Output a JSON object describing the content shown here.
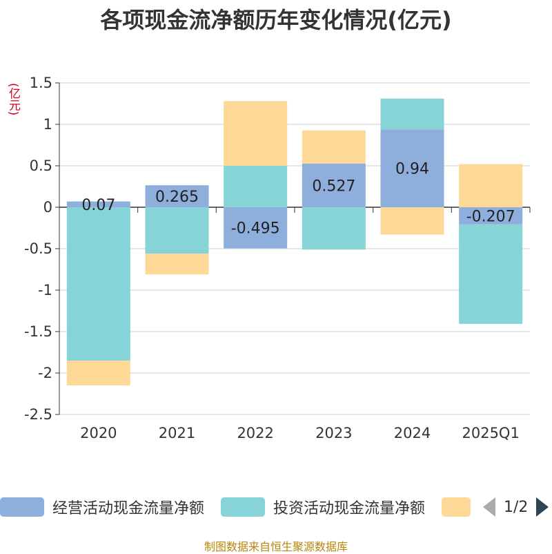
{
  "title": "各项现金流净额历年变化情况(亿元)",
  "unit_label": "(亿元)",
  "source": "制图数据来自恒生聚源数据库",
  "legend": {
    "items": [
      {
        "label": "经营活动现金流量净额",
        "color": "#8eaedc"
      },
      {
        "label": "投资活动现金流量净额",
        "color": "#86d4d7"
      },
      {
        "label": "",
        "color": "#fed897"
      }
    ],
    "page_text": "1/2"
  },
  "chart_data": {
    "type": "bar",
    "stacked": true,
    "categories": [
      "2020",
      "2021",
      "2022",
      "2023",
      "2024",
      "2025Q1"
    ],
    "series": [
      {
        "name": "经营活动现金流量净额",
        "color": "#8eaedc",
        "values": [
          0.07,
          0.265,
          -0.495,
          0.527,
          0.94,
          -0.207
        ],
        "data_labels": [
          "0.07",
          "0.265",
          "-0.495",
          "0.527",
          "0.94",
          "-0.207"
        ]
      },
      {
        "name": "投资活动现金流量净额",
        "color": "#86d4d7",
        "values": [
          -1.85,
          -0.56,
          0.5,
          -0.51,
          0.37,
          -1.2
        ]
      },
      {
        "name": "",
        "color": "#fed897",
        "values": [
          -0.3,
          -0.25,
          0.78,
          0.4,
          -0.33,
          0.52
        ]
      }
    ],
    "ylim": [
      -2.5,
      1.5
    ],
    "yticks": [
      "1.5",
      "1",
      "0.5",
      "0",
      "-0.5",
      "-1",
      "-1.5",
      "-2",
      "-2.5"
    ],
    "grid": true
  }
}
